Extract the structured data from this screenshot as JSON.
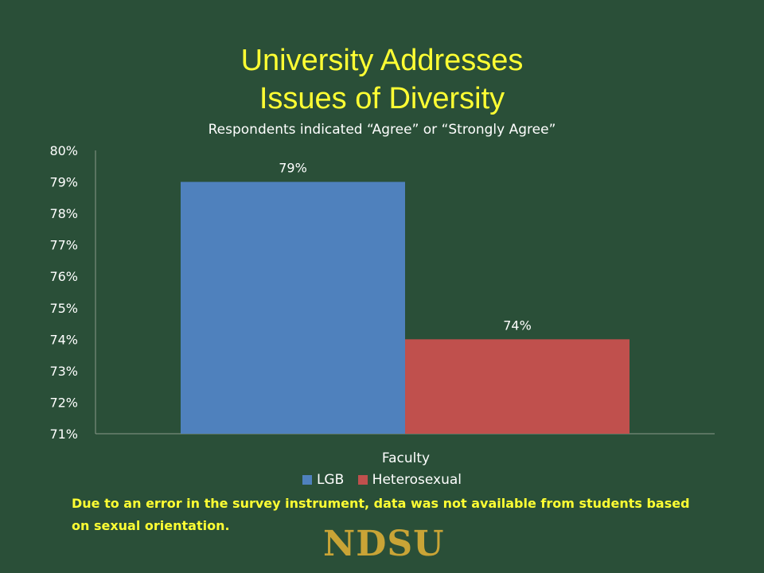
{
  "slide": {
    "title_line1": "University Addresses",
    "title_line2": "Issues of Diversity",
    "note": "Due to an error in the survey instrument, data was not available from students based on sexual orientation.",
    "logo": "NDSU"
  },
  "chart_data": {
    "type": "bar",
    "subtitle": "Respondents indicated “Agree” or “Strongly Agree”",
    "categories": [
      "Faculty"
    ],
    "series": [
      {
        "name": "LGB",
        "values": [
          79
        ],
        "color": "#4f81bd",
        "data_label": "79%"
      },
      {
        "name": "Heterosexual",
        "values": [
          74
        ],
        "color": "#c0504d",
        "data_label": "74%"
      }
    ],
    "ylim": [
      71,
      80
    ],
    "yticks": [
      "71%",
      "72%",
      "73%",
      "74%",
      "75%",
      "76%",
      "77%",
      "78%",
      "79%",
      "80%"
    ],
    "legend": "bottom",
    "grid": false
  }
}
